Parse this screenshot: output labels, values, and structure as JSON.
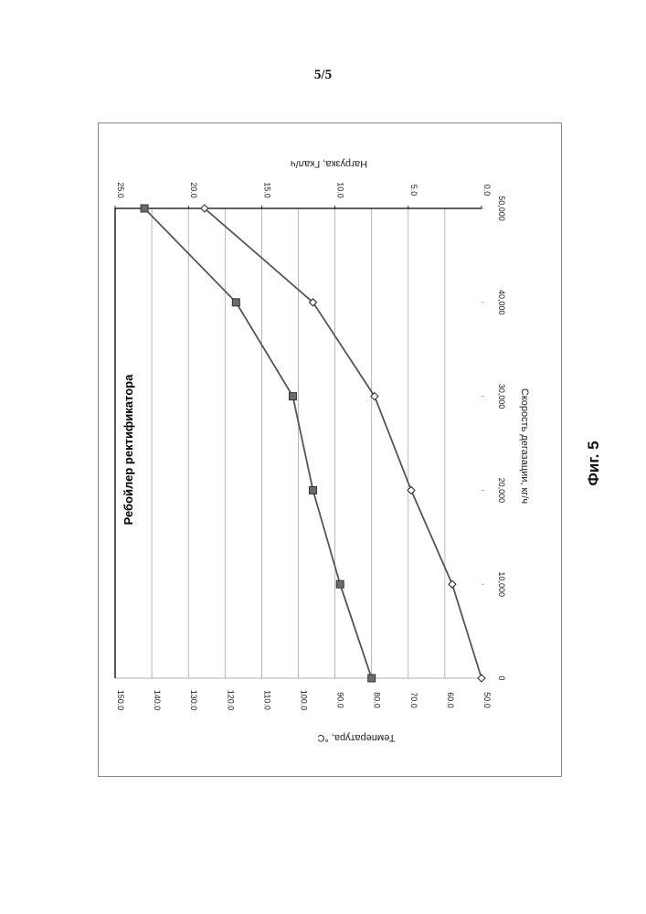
{
  "page": {
    "number": "5/5",
    "caption": "Фиг. 5"
  },
  "chart_data": {
    "type": "line",
    "title": "Ребойлер ректификатора",
    "xlabel": "Скорость дегазации, кг/ч",
    "ylabel_left": "Температура, °C",
    "ylabel_right": "Нагрузка, Гкал/ч",
    "x": [
      0,
      10000,
      20000,
      30000,
      40000,
      50000
    ],
    "x_tick_labels": [
      "0",
      "10,000",
      "20,000",
      "30,000",
      "40,000",
      "50,000"
    ],
    "xlim": [
      0,
      50000
    ],
    "ylim_left": [
      50,
      150
    ],
    "y_left_tick_labels": [
      "50.0",
      "60.0",
      "70.0",
      "80.0",
      "90.0",
      "100.0",
      "110.0",
      "120.0",
      "130.0",
      "140.0",
      "150.0"
    ],
    "ylim_right": [
      0,
      25
    ],
    "y_right_tick_labels": [
      "0.0",
      "5.0",
      "10.0",
      "15.0",
      "20.0",
      "25.0"
    ],
    "grid": true,
    "orientation": "rotated-90-clockwise",
    "series": [
      {
        "axis": "left",
        "marker": "square",
        "color": "#555555",
        "values": [
          80.0,
          88.6,
          96.0,
          101.5,
          117.0,
          142.0
        ]
      },
      {
        "axis": "right",
        "marker": "diamond",
        "color": "#555555",
        "values": [
          0.0,
          2.0,
          4.8,
          7.3,
          11.5,
          18.9
        ]
      }
    ]
  }
}
